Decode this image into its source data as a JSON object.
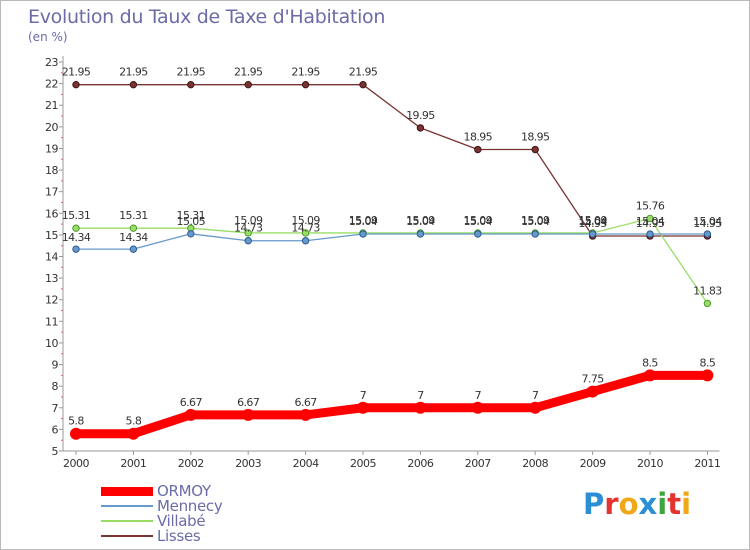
{
  "title": "Evolution du Taux de Taxe d'Habitation",
  "subtitle": "(en %)",
  "logo_text": "Proxiti",
  "logo_colors": [
    "#2b8fd6",
    "#e3342f",
    "#f0a818",
    "#2b8fd6",
    "#3ba63b",
    "#e3342f",
    "#f0a818"
  ],
  "chart_data": {
    "type": "line",
    "title": "Evolution du Taux de Taxe d'Habitation",
    "ylabel": "(en %)",
    "xlabel": "",
    "x": [
      "2000",
      "2001",
      "2002",
      "2003",
      "2004",
      "2005",
      "2006",
      "2007",
      "2008",
      "2009",
      "2010",
      "2011"
    ],
    "ylim": [
      5,
      23
    ],
    "yticks": [
      "5",
      "6",
      "7",
      "8",
      "9",
      "10",
      "11",
      "12",
      "13",
      "14",
      "15",
      "16",
      "17",
      "18",
      "19",
      "20",
      "21",
      "22",
      "23"
    ],
    "grid": false,
    "legend_position": "bottom-left",
    "series": [
      {
        "name": "ORMOY",
        "color": "#ff0000",
        "values": [
          5.8,
          5.8,
          6.67,
          6.67,
          6.67,
          7,
          7,
          7,
          7,
          7.75,
          8.5,
          8.5
        ],
        "labels": [
          "5.8",
          "5.8",
          "6.67",
          "6.67",
          "6.67",
          "7",
          "7",
          "7",
          "7",
          "7.75",
          "8.5",
          "8.5"
        ]
      },
      {
        "name": "Mennecy",
        "color": "#6699cc",
        "values": [
          14.34,
          14.34,
          15.05,
          14.73,
          14.73,
          15.04,
          15.04,
          15.04,
          15.04,
          15.04,
          15.04,
          15.04
        ],
        "labels": [
          "14.34",
          "14.34",
          "15.05",
          "14.73",
          "14.73",
          "15.04",
          "15.04",
          "15.04",
          "15.04",
          "15.04",
          "15.04",
          "15.04"
        ]
      },
      {
        "name": "Villabé",
        "color": "#99dd66",
        "values": [
          15.31,
          15.31,
          15.31,
          15.09,
          15.09,
          15.09,
          15.09,
          15.09,
          15.09,
          15.09,
          15.76,
          11.83
        ],
        "labels": [
          "15.31",
          "15.31",
          "15.31",
          "15.09",
          "15.09",
          "15.09",
          "15.09",
          "15.09",
          "15.09",
          "15.09",
          "15.76",
          "11.83"
        ]
      },
      {
        "name": "Lisses",
        "color": "#7a3333",
        "values": [
          21.95,
          21.95,
          21.95,
          21.95,
          21.95,
          21.95,
          19.95,
          18.95,
          18.95,
          14.95,
          14.95,
          14.95
        ],
        "labels": [
          "21.95",
          "21.95",
          "21.95",
          "21.95",
          "21.95",
          "21.95",
          "19.95",
          "18.95",
          "18.95",
          "14.95",
          "14.95",
          "14.95"
        ]
      }
    ]
  }
}
